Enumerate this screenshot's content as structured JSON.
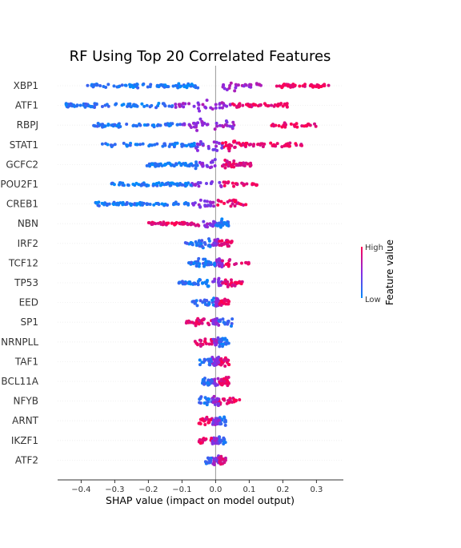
{
  "chart_data": {
    "type": "scatter",
    "subtype": "beeswarm",
    "title": "RF Using Top 20 Correlated Features",
    "xlabel": "SHAP value (impact on model output)",
    "xlim": [
      -0.47,
      0.38
    ],
    "xticks": [
      -0.4,
      -0.3,
      -0.2,
      -0.1,
      0.0,
      0.1,
      0.2,
      0.3
    ],
    "xtick_labels": [
      "−0.4",
      "−0.3",
      "−0.2",
      "−0.1",
      "0.0",
      "0.1",
      "0.2",
      "0.3"
    ],
    "zero_line": true,
    "grid": false,
    "colorbar": {
      "label": "Feature value",
      "high_label": "High",
      "low_label": "Low",
      "low_color": "#008bfb",
      "high_color": "#ff0052"
    },
    "features": [
      {
        "name": "XBP1",
        "ranges": [
          [
            -0.4,
            -0.05,
            0.1
          ],
          [
            0.02,
            0.14,
            0.6
          ],
          [
            0.18,
            0.34,
            0.95
          ]
        ],
        "count": 150,
        "spread": 6
      },
      {
        "name": "ATF1",
        "ranges": [
          [
            -0.45,
            -0.12,
            0.12
          ],
          [
            -0.12,
            0.05,
            0.55
          ],
          [
            0.05,
            0.22,
            0.9
          ]
        ],
        "count": 150,
        "spread": 6
      },
      {
        "name": "RBPJ",
        "ranges": [
          [
            -0.37,
            -0.1,
            0.12
          ],
          [
            -0.1,
            0.06,
            0.55
          ],
          [
            0.16,
            0.3,
            0.95
          ]
        ],
        "count": 130,
        "spread": 6
      },
      {
        "name": "STAT1",
        "ranges": [
          [
            -0.34,
            -0.06,
            0.1
          ],
          [
            -0.06,
            0.02,
            0.45
          ],
          [
            0.02,
            0.26,
            0.9
          ]
        ],
        "count": 140,
        "spread": 6
      },
      {
        "name": "GCFC2",
        "ranges": [
          [
            -0.21,
            -0.05,
            0.1
          ],
          [
            -0.05,
            0.02,
            0.5
          ],
          [
            0.02,
            0.11,
            0.85
          ]
        ],
        "count": 110,
        "spread": 5
      },
      {
        "name": "POU2F1",
        "ranges": [
          [
            -0.31,
            -0.07,
            0.1
          ],
          [
            -0.07,
            0.02,
            0.5
          ],
          [
            0.02,
            0.13,
            0.9
          ]
        ],
        "count": 110,
        "spread": 5
      },
      {
        "name": "CREB1",
        "ranges": [
          [
            -0.36,
            -0.07,
            0.1
          ],
          [
            -0.07,
            0.0,
            0.5
          ],
          [
            0.0,
            0.09,
            0.9
          ]
        ],
        "count": 110,
        "spread": 5
      },
      {
        "name": "NBN",
        "ranges": [
          [
            -0.2,
            -0.05,
            0.9
          ],
          [
            -0.05,
            0.0,
            0.5
          ],
          [
            0.0,
            0.04,
            0.15
          ]
        ],
        "count": 80,
        "spread": 4
      },
      {
        "name": "IRF2",
        "ranges": [
          [
            -0.09,
            -0.01,
            0.15
          ],
          [
            -0.01,
            0.01,
            0.5
          ],
          [
            0.01,
            0.05,
            0.9
          ]
        ],
        "count": 80,
        "spread": 4
      },
      {
        "name": "TCF12",
        "ranges": [
          [
            -0.08,
            0.0,
            0.15
          ],
          [
            0.0,
            0.02,
            0.5
          ],
          [
            0.02,
            0.1,
            0.9
          ]
        ],
        "count": 80,
        "spread": 4
      },
      {
        "name": "TP53",
        "ranges": [
          [
            -0.11,
            -0.02,
            0.12
          ],
          [
            -0.02,
            0.02,
            0.5
          ],
          [
            0.02,
            0.08,
            0.9
          ]
        ],
        "count": 80,
        "spread": 4
      },
      {
        "name": "EED",
        "ranges": [
          [
            -0.07,
            0.0,
            0.15
          ],
          [
            0.0,
            0.01,
            0.5
          ],
          [
            0.01,
            0.04,
            0.9
          ]
        ],
        "count": 70,
        "spread": 4
      },
      {
        "name": "SP1",
        "ranges": [
          [
            -0.09,
            -0.01,
            0.9
          ],
          [
            -0.01,
            0.01,
            0.5
          ],
          [
            0.01,
            0.05,
            0.15
          ]
        ],
        "count": 70,
        "spread": 4
      },
      {
        "name": "HNRNPLL",
        "ranges": [
          [
            -0.07,
            -0.01,
            0.9
          ],
          [
            -0.01,
            0.01,
            0.5
          ],
          [
            0.01,
            0.04,
            0.15
          ]
        ],
        "count": 65,
        "spread": 4
      },
      {
        "name": "TAF1",
        "ranges": [
          [
            -0.05,
            -0.01,
            0.15
          ],
          [
            -0.01,
            0.01,
            0.5
          ],
          [
            0.01,
            0.04,
            0.9
          ]
        ],
        "count": 65,
        "spread": 4
      },
      {
        "name": "BCL11A",
        "ranges": [
          [
            -0.04,
            -0.01,
            0.15
          ],
          [
            -0.01,
            0.01,
            0.5
          ],
          [
            0.01,
            0.04,
            0.9
          ]
        ],
        "count": 65,
        "spread": 4
      },
      {
        "name": "NFYB",
        "ranges": [
          [
            -0.05,
            -0.01,
            0.15
          ],
          [
            -0.01,
            0.01,
            0.5
          ],
          [
            0.01,
            0.08,
            0.9
          ]
        ],
        "count": 65,
        "spread": 4
      },
      {
        "name": "ARNT",
        "ranges": [
          [
            -0.05,
            -0.01,
            0.9
          ],
          [
            -0.01,
            0.01,
            0.5
          ],
          [
            0.01,
            0.03,
            0.15
          ]
        ],
        "count": 60,
        "spread": 4
      },
      {
        "name": "IKZF1",
        "ranges": [
          [
            -0.05,
            -0.01,
            0.9
          ],
          [
            -0.01,
            0.01,
            0.5
          ],
          [
            0.01,
            0.03,
            0.15
          ]
        ],
        "count": 55,
        "spread": 4
      },
      {
        "name": "ATF2",
        "ranges": [
          [
            -0.03,
            -0.01,
            0.2
          ],
          [
            -0.01,
            0.01,
            0.5
          ],
          [
            0.01,
            0.03,
            0.8
          ]
        ],
        "count": 55,
        "spread": 4
      }
    ]
  }
}
